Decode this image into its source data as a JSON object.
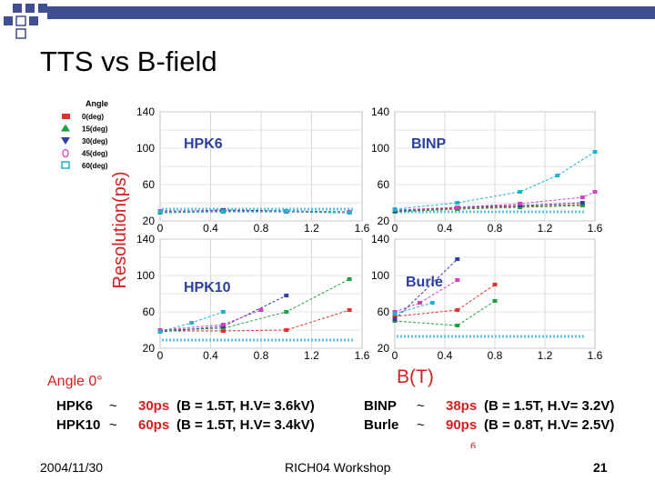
{
  "slide": {
    "title": "TTS vs B-field",
    "date": "2004/11/30",
    "workshop": "RICH04 Workshop",
    "page_number": "21"
  },
  "colors": {
    "deco_squares": "#3f4f8f",
    "label_red": "#d42020",
    "axis_gray": "#8a8a8a",
    "ref_line": "#5bc8e8"
  },
  "figure": {
    "y_axis_label": "Resolution(ps)",
    "x_axis_label": "B(T)",
    "stray_mark": "6",
    "angle_legend": {
      "heading": "Angle",
      "entries": [
        {
          "label": "0(deg)",
          "color": "#e03030",
          "shape": "square"
        },
        {
          "label": "15(deg)",
          "color": "#20a040",
          "shape": "triangle"
        },
        {
          "label": "30(deg)",
          "color": "#3040a0",
          "shape": "triangle-down"
        },
        {
          "label": "45(deg)",
          "color": "#d040c0",
          "shape": "circle"
        },
        {
          "label": "60(deg)",
          "color": "#20b0d0",
          "shape": "square-open"
        }
      ]
    },
    "summary": {
      "heading": "Angle 0°",
      "rows": [
        {
          "name": "HPK6",
          "sep": "~",
          "value": "30ps",
          "detail": "(B = 1.5T, H.V= 3.6kV)"
        },
        {
          "name": "HPK10",
          "sep": "~",
          "value": "60ps",
          "detail": "(B = 1.5T, H.V= 3.4kV)"
        },
        {
          "name": "BINP",
          "sep": "~",
          "value": "38ps",
          "detail": "(B = 1.5T, H.V= 3.2V)"
        },
        {
          "name": "Burle",
          "sep": "~",
          "value": "90ps",
          "detail": "(B = 0.8T, H.V= 2.5V)"
        }
      ]
    }
  },
  "chart_data": [
    {
      "type": "line",
      "panel_label": "HPK6",
      "x_ticks": [
        "0",
        "0.4",
        "0.8",
        "1.2",
        "1.6"
      ],
      "y_ticks": [
        "20",
        "60",
        "100",
        "140"
      ],
      "xlim": [
        0,
        1.6
      ],
      "ylim": [
        20,
        140
      ],
      "series": [
        {
          "name": "0(deg)",
          "color": "#e03030",
          "x": [
            0,
            0.5,
            1.0,
            1.5
          ],
          "y": [
            30,
            31,
            30,
            29
          ]
        },
        {
          "name": "15(deg)",
          "color": "#20a040",
          "x": [
            0,
            0.5,
            1.0,
            1.5
          ],
          "y": [
            29,
            30,
            30,
            29
          ]
        },
        {
          "name": "30(deg)",
          "color": "#3040a0",
          "x": [
            0,
            0.5,
            1.0,
            1.5
          ],
          "y": [
            30,
            32,
            31,
            30
          ]
        },
        {
          "name": "45(deg)",
          "color": "#d040c0",
          "x": [
            0,
            0.5,
            1.0,
            1.5
          ],
          "y": [
            31,
            31,
            30,
            30
          ]
        },
        {
          "name": "60(deg)",
          "color": "#20b0d0",
          "x": [
            0,
            0.5,
            1.0,
            1.5
          ],
          "y": [
            30,
            30,
            31,
            29
          ]
        }
      ],
      "ref_y": 33
    },
    {
      "type": "line",
      "panel_label": "BINP",
      "x_ticks": [
        "0",
        "0.4",
        "0.8",
        "1.2",
        "1.6"
      ],
      "y_ticks": [
        "20",
        "60",
        "100",
        "140"
      ],
      "xlim": [
        0,
        1.6
      ],
      "ylim": [
        20,
        140
      ],
      "series": [
        {
          "name": "0(deg)",
          "color": "#e03030",
          "x": [
            0,
            0.5,
            1.0,
            1.5
          ],
          "y": [
            30,
            34,
            36,
            38
          ]
        },
        {
          "name": "15(deg)",
          "color": "#20a040",
          "x": [
            0,
            0.5,
            1.0,
            1.5
          ],
          "y": [
            30,
            33,
            35,
            37
          ]
        },
        {
          "name": "30(deg)",
          "color": "#3040a0",
          "x": [
            0,
            0.5,
            1.0,
            1.5
          ],
          "y": [
            31,
            35,
            37,
            40
          ]
        },
        {
          "name": "45(deg)",
          "color": "#d040c0",
          "x": [
            0,
            0.5,
            1.0,
            1.5,
            1.6
          ],
          "y": [
            32,
            35,
            39,
            46,
            52
          ]
        },
        {
          "name": "60(deg)",
          "color": "#20b0d0",
          "x": [
            0,
            0.5,
            1.0,
            1.3,
            1.6
          ],
          "y": [
            33,
            40,
            52,
            70,
            96
          ]
        }
      ],
      "ref_y": 30
    },
    {
      "type": "line",
      "panel_label": "HPK10",
      "x_ticks": [
        "0",
        "0.4",
        "0.8",
        "1.2",
        "1.6"
      ],
      "y_ticks": [
        "20",
        "60",
        "100",
        "140"
      ],
      "xlim": [
        0,
        1.6
      ],
      "ylim": [
        20,
        140
      ],
      "series": [
        {
          "name": "0(deg)",
          "color": "#e03030",
          "x": [
            0,
            0.5,
            1.0,
            1.5
          ],
          "y": [
            39,
            39,
            40,
            62
          ]
        },
        {
          "name": "15(deg)",
          "color": "#20a040",
          "x": [
            0,
            0.5,
            1.0,
            1.5
          ],
          "y": [
            40,
            42,
            60,
            96
          ]
        },
        {
          "name": "30(deg)",
          "color": "#3040a0",
          "x": [
            0,
            0.5,
            1.0
          ],
          "y": [
            38,
            44,
            78
          ]
        },
        {
          "name": "45(deg)",
          "color": "#d040c0",
          "x": [
            0,
            0.5,
            0.8
          ],
          "y": [
            40,
            46,
            62
          ]
        },
        {
          "name": "60(deg)",
          "color": "#20b0d0",
          "x": [
            0,
            0.25,
            0.5
          ],
          "y": [
            38,
            48,
            60
          ]
        }
      ],
      "ref_y": 29
    },
    {
      "type": "line",
      "panel_label": "Burle",
      "x_ticks": [
        "0",
        "0.4",
        "0.8",
        "1.2",
        "1.6"
      ],
      "y_ticks": [
        "20",
        "60",
        "100",
        "140"
      ],
      "xlim": [
        0,
        1.6
      ],
      "ylim": [
        20,
        140
      ],
      "series": [
        {
          "name": "0(deg)",
          "color": "#e03030",
          "x": [
            0,
            0.5,
            0.8
          ],
          "y": [
            55,
            62,
            90
          ]
        },
        {
          "name": "15(deg)",
          "color": "#20a040",
          "x": [
            0,
            0.5,
            0.8
          ],
          "y": [
            50,
            45,
            72
          ]
        },
        {
          "name": "30(deg)",
          "color": "#3040a0",
          "x": [
            0,
            0.5
          ],
          "y": [
            52,
            118
          ]
        },
        {
          "name": "45(deg)",
          "color": "#d040c0",
          "x": [
            0,
            0.2,
            0.5
          ],
          "y": [
            60,
            70,
            95
          ]
        },
        {
          "name": "60(deg)",
          "color": "#20b0d0",
          "x": [
            0,
            0.3
          ],
          "y": [
            58,
            70
          ]
        }
      ],
      "ref_y": 33
    }
  ]
}
